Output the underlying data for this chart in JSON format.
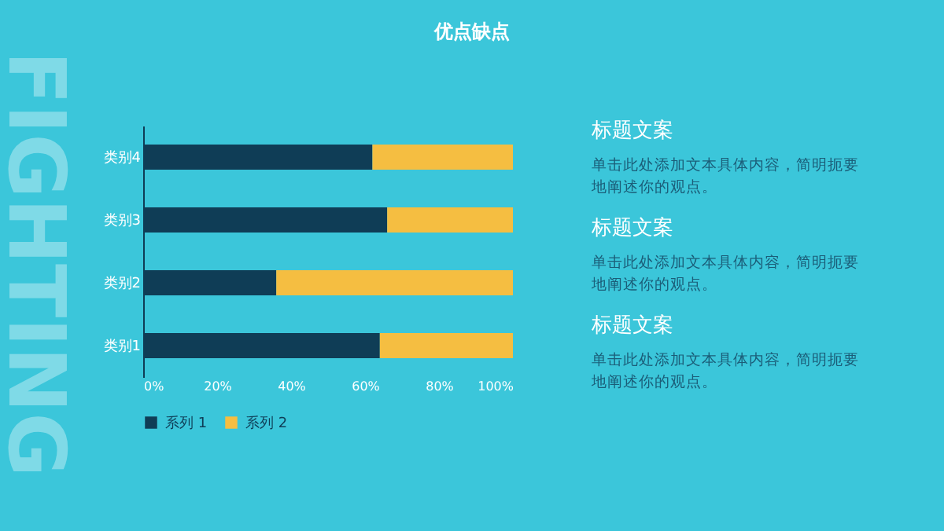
{
  "chart_data": {
    "type": "bar",
    "orientation": "horizontal",
    "stacked": true,
    "title": "优点缺点",
    "categories": [
      "类别4",
      "类别3",
      "类别2",
      "类别1"
    ],
    "series": [
      {
        "name": "系列 1",
        "color": "#0f3d56",
        "values": [
          62,
          66,
          36,
          64
        ]
      },
      {
        "name": "系列 2",
        "color": "#f5be41",
        "values": [
          38,
          34,
          64,
          36
        ]
      }
    ],
    "xlim": [
      0,
      100
    ],
    "xticks": [
      {
        "value": 0,
        "label": "0%"
      },
      {
        "value": 20,
        "label": "20%"
      },
      {
        "value": 40,
        "label": "40%"
      },
      {
        "value": 60,
        "label": "60%"
      },
      {
        "value": 80,
        "label": "80%"
      },
      {
        "value": 100,
        "label": "100%"
      }
    ],
    "grid": false,
    "legend": "bottom",
    "annotations": [
      "FIGHTING",
      "标题文案",
      "单击此处添加文本具体内容，简明扼要地阐述你的观点。",
      "标题文案",
      "单击此处添加文本具体内容，简明扼要地阐述你的观点。",
      "标题文案",
      "单击此处添加文本具体内容，简明扼要地阐述你的观点。"
    ]
  }
}
